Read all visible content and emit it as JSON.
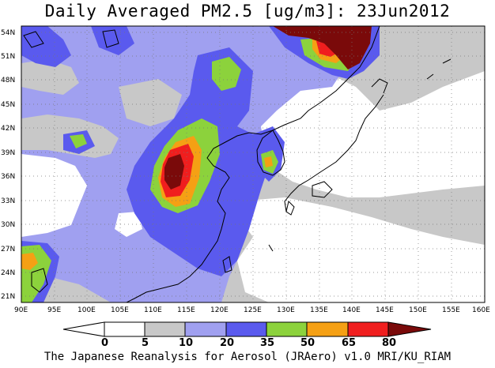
{
  "title": "Daily Averaged PM2.5 [ug/m3]: 23Jun2012",
  "footer": "The Japanese Reanalysis for Aerosol (JRAero) v1.0 MRI/KU_RIAM",
  "lon_labels": [
    "90E",
    "95E",
    "100E",
    "105E",
    "110E",
    "115E",
    "120E",
    "125E",
    "130E",
    "135E",
    "140E",
    "145E",
    "150E",
    "155E",
    "160E"
  ],
  "lat_labels": [
    "54N",
    "51N",
    "48N",
    "45N",
    "42N",
    "39N",
    "36N",
    "33N",
    "30N",
    "27N",
    "24N",
    "21N"
  ],
  "colorbar": {
    "labels": [
      "0",
      "5",
      "10",
      "20",
      "35",
      "50",
      "65",
      "80"
    ],
    "colors": [
      "#ffffff",
      "#c8c8c8",
      "#a0a0f0",
      "#5a5aee",
      "#8cd23c",
      "#f5a014",
      "#f01e1e",
      "#7a0a0a"
    ]
  }
}
